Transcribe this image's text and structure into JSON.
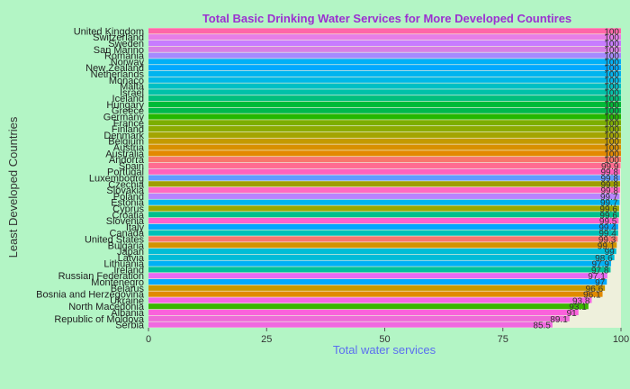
{
  "chart_data": {
    "type": "bar",
    "orientation": "horizontal",
    "title": "Total Basic Drinking Water Services for More Developed Countires",
    "xlabel": "Total water services",
    "ylabel": "Least Developed Countries",
    "xlim": [
      0,
      100
    ],
    "xticks": [
      "0",
      "25",
      "50",
      "75",
      "100"
    ],
    "grid": false,
    "legend": "none",
    "panel_color": "#eef0dc",
    "categories": [
      "United Kingdom",
      "Switzerland",
      "Sweden",
      "San Marino",
      "Romania",
      "Norway",
      "New Zealand",
      "Netherlands",
      "Monaco",
      "Malta",
      "Israel",
      "Iceland",
      "Hungary",
      "Greece",
      "Germany",
      "France",
      "Finland",
      "Denmark",
      "Belgium",
      "Austria",
      "Australia",
      "Andorra",
      "Spain",
      "Portugal",
      "Luxembourg",
      "Czechia",
      "Slovakia",
      "Poland",
      "Estonia",
      "Cyprus",
      "Croatia",
      "Slovenia",
      "Italy",
      "Canada",
      "United States",
      "Bulgaria",
      "Japan",
      "Latvia",
      "Lithuania",
      "Ireland",
      "Russian Federation",
      "Montenegro",
      "Belarus",
      "Bosnia and Herzegovina",
      "Ukraine",
      "North Macedonia",
      "Albania",
      "Republic of Moldova",
      "Serbia"
    ],
    "values": [
      100,
      100,
      100,
      100,
      100,
      100,
      100,
      100,
      100,
      100,
      100,
      100,
      100,
      100,
      100,
      100,
      100,
      100,
      100,
      100,
      100,
      100,
      99.9,
      99.8,
      99.8,
      99.8,
      99.8,
      99.7,
      99.7,
      99.6,
      99.6,
      99.5,
      99.4,
      99.4,
      99.3,
      99.1,
      99,
      98.6,
      97.9,
      97.8,
      97.1,
      97,
      96.6,
      96.1,
      93.8,
      93.1,
      91,
      89.1,
      85.5
    ],
    "labels": [
      "100",
      "100",
      "100",
      "100",
      "100",
      "100",
      "100",
      "100",
      "100",
      "100",
      "100",
      "100",
      "100",
      "100",
      "100",
      "100",
      "100",
      "100",
      "100",
      "100",
      "100",
      "100",
      "99.9",
      "99.8",
      "99.8",
      "99.8",
      "99.8",
      "99.7",
      "99.7",
      "99.6",
      "99.6",
      "99.5",
      "99.4",
      "99.4",
      "99.3",
      "99.1",
      "99",
      "98.6",
      "97.9",
      "97.8",
      "97.1",
      "97",
      "96.6",
      "96.1",
      "93.8",
      "93.1",
      "91",
      "89.1",
      "85.5"
    ],
    "colors": [
      "#ff66a8",
      "#e77de8",
      "#c77cff",
      "#d77fe5",
      "#a58aff",
      "#00b0f6",
      "#00a9ff",
      "#00b4ef",
      "#00b8e7",
      "#00bfc4",
      "#00c1a8",
      "#00bf7d",
      "#00ba38",
      "#00b84d",
      "#24b700",
      "#7cae00",
      "#8cab00",
      "#a3a500",
      "#c49a00",
      "#d89000",
      "#e38900",
      "#f8766d",
      "#ff6c91",
      "#ff62bc",
      "#619cff",
      "#9e9e00",
      "#ff6ac1",
      "#b983ff",
      "#00b5ee",
      "#9aa800",
      "#00c08b",
      "#ff61cc",
      "#00a5ff",
      "#00c0b8",
      "#f8766d",
      "#d39200",
      "#00bdd6",
      "#00bcd8",
      "#00b0f6",
      "#00c19c",
      "#e76bf3",
      "#00a9ff",
      "#c99800",
      "#e18a00",
      "#f564e3",
      "#39b600",
      "#fa62db",
      "#ee6bd8",
      "#f069e0"
    ]
  }
}
